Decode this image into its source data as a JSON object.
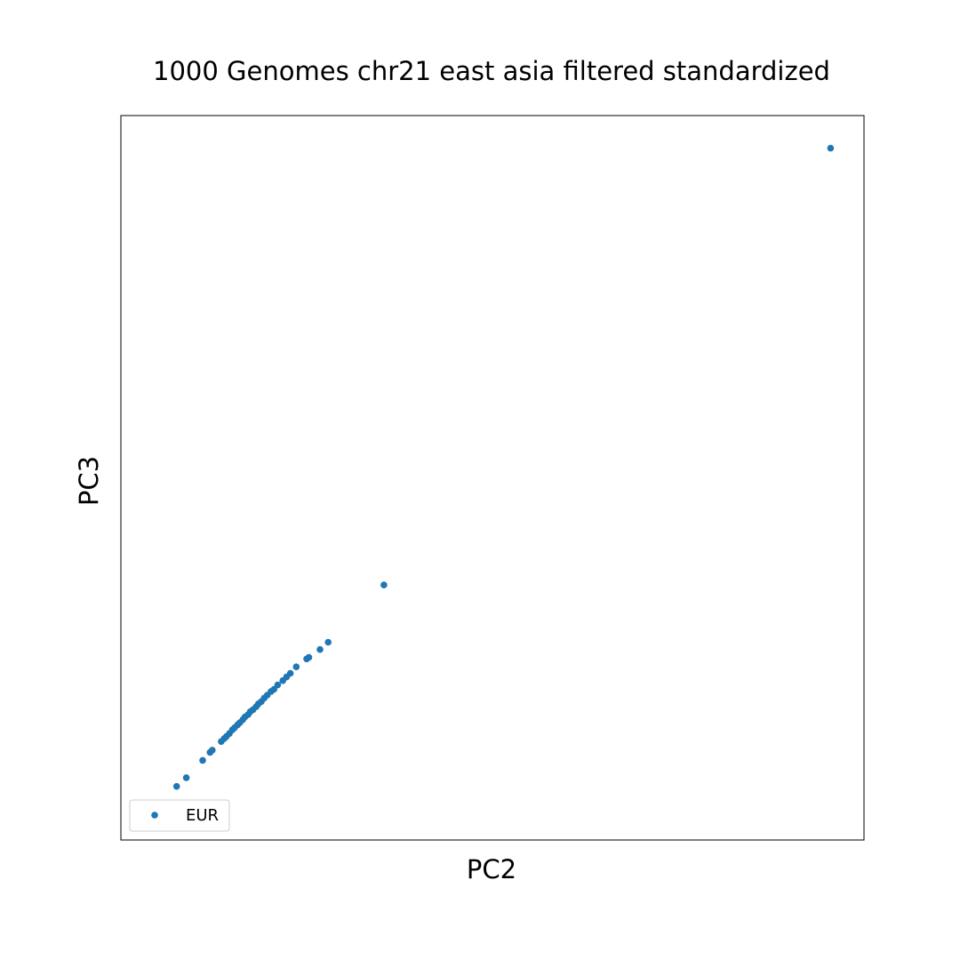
{
  "chart_data": {
    "type": "scatter",
    "title": "1000 Genomes chr21 east asia filtered standardized",
    "xlabel": "PC2",
    "ylabel": "PC3",
    "xlim": [
      0,
      100
    ],
    "ylim": [
      0,
      100
    ],
    "ticks_shown": false,
    "grid": false,
    "legend": "bottom-left",
    "series": [
      {
        "name": "EUR",
        "color": "#1f77b4",
        "points": [
          [
            7.5,
            7.4
          ],
          [
            8.8,
            8.6
          ],
          [
            11.0,
            11.0
          ],
          [
            12.0,
            12.1
          ],
          [
            12.3,
            12.4
          ],
          [
            13.5,
            13.6
          ],
          [
            13.9,
            14.0
          ],
          [
            14.2,
            14.3
          ],
          [
            14.6,
            14.7
          ],
          [
            15.0,
            15.2
          ],
          [
            15.3,
            15.5
          ],
          [
            15.7,
            15.9
          ],
          [
            16.0,
            16.2
          ],
          [
            16.4,
            16.6
          ],
          [
            16.7,
            17.0
          ],
          [
            17.1,
            17.3
          ],
          [
            17.4,
            17.7
          ],
          [
            17.8,
            18.0
          ],
          [
            18.2,
            18.4
          ],
          [
            18.5,
            18.8
          ],
          [
            18.9,
            19.1
          ],
          [
            19.3,
            19.6
          ],
          [
            19.7,
            20.0
          ],
          [
            20.2,
            20.5
          ],
          [
            20.6,
            20.8
          ],
          [
            21.1,
            21.4
          ],
          [
            21.8,
            22.0
          ],
          [
            22.3,
            22.5
          ],
          [
            22.8,
            23.0
          ],
          [
            23.6,
            23.9
          ],
          [
            25.0,
            25.0
          ],
          [
            25.3,
            25.2
          ],
          [
            26.8,
            26.3
          ],
          [
            27.9,
            27.3
          ],
          [
            35.4,
            35.2
          ],
          [
            95.5,
            95.5
          ]
        ]
      }
    ]
  }
}
